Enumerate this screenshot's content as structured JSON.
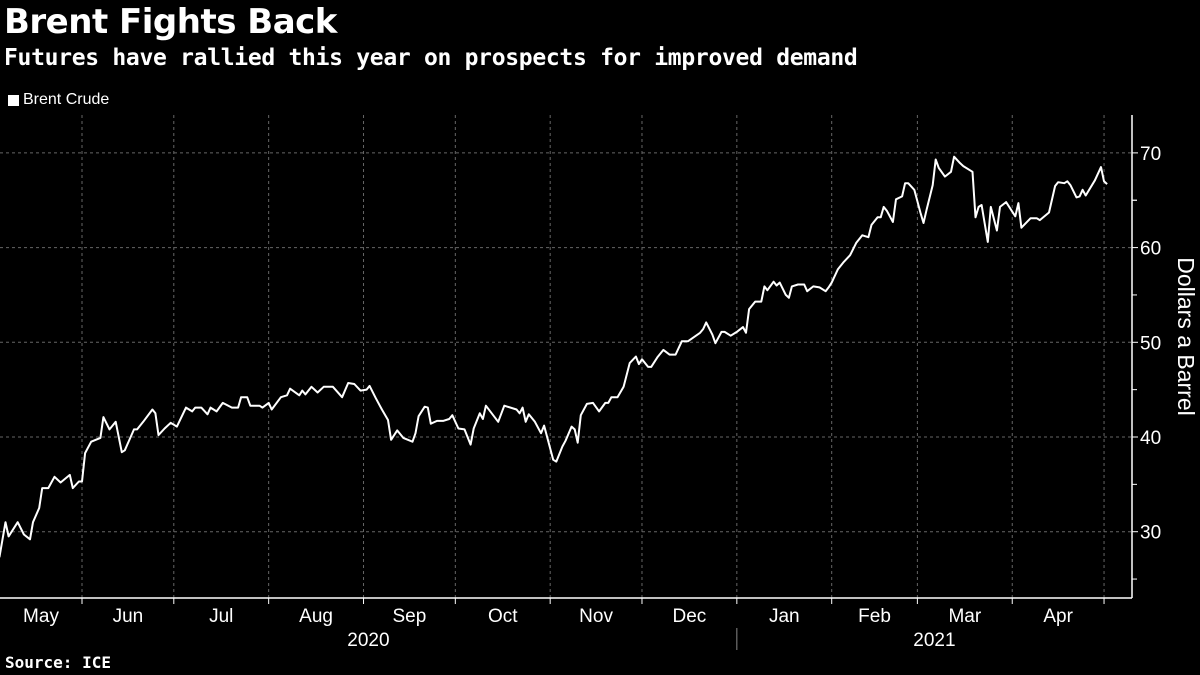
{
  "title": "Brent Fights Back",
  "subtitle": "Futures have rallied this year on prospects for improved demand",
  "source": "Source: ICE",
  "colors": {
    "background": "#000000",
    "line": "#ffffff",
    "grid": "#666666"
  },
  "chart_data": {
    "type": "line",
    "title": "Brent Fights Back",
    "subtitle": "Futures have rallied this year on prospects for improved demand",
    "ylabel": "Dollars a Barrel",
    "ylim": [
      23,
      74
    ],
    "yticks": [
      30,
      40,
      50,
      60,
      70
    ],
    "y_axis_side": "right",
    "grid": true,
    "legend_placement": "top-left",
    "xticks": [
      {
        "label": "May",
        "month": "2020-05"
      },
      {
        "label": "Jun",
        "month": "2020-06"
      },
      {
        "label": "Jul",
        "month": "2020-07"
      },
      {
        "label": "Aug",
        "month": "2020-08"
      },
      {
        "label": "Sep",
        "month": "2020-09"
      },
      {
        "label": "Oct",
        "month": "2020-10"
      },
      {
        "label": "Nov",
        "month": "2020-11"
      },
      {
        "label": "Dec",
        "month": "2020-12"
      },
      {
        "label": "Jan",
        "month": "2021-01"
      },
      {
        "label": "Feb",
        "month": "2021-02"
      },
      {
        "label": "Mar",
        "month": "2021-03"
      },
      {
        "label": "Apr",
        "month": "2021-04"
      }
    ],
    "years": [
      {
        "label": "2020"
      },
      {
        "label": "2021"
      }
    ],
    "series": [
      {
        "name": "Brent Crude",
        "color": "#ffffff",
        "points": [
          [
            "2020-05-05",
            27.3
          ],
          [
            "2020-05-07",
            31.0
          ],
          [
            "2020-05-08",
            29.5
          ],
          [
            "2020-05-11",
            31.0
          ],
          [
            "2020-05-13",
            29.7
          ],
          [
            "2020-05-15",
            29.2
          ],
          [
            "2020-05-16",
            31.0
          ],
          [
            "2020-05-18",
            32.5
          ],
          [
            "2020-05-19",
            34.6
          ],
          [
            "2020-05-21",
            34.6
          ],
          [
            "2020-05-23",
            35.8
          ],
          [
            "2020-05-25",
            35.2
          ],
          [
            "2020-05-28",
            36.0
          ],
          [
            "2020-05-29",
            34.6
          ],
          [
            "2020-05-31",
            35.3
          ],
          [
            "2020-06-01",
            35.3
          ],
          [
            "2020-06-02",
            38.3
          ],
          [
            "2020-06-04",
            39.5
          ],
          [
            "2020-06-07",
            39.9
          ],
          [
            "2020-06-08",
            42.1
          ],
          [
            "2020-06-10",
            40.8
          ],
          [
            "2020-06-12",
            41.6
          ],
          [
            "2020-06-14",
            38.4
          ],
          [
            "2020-06-15",
            38.6
          ],
          [
            "2020-06-18",
            40.8
          ],
          [
            "2020-06-19",
            40.8
          ],
          [
            "2020-06-21",
            41.6
          ],
          [
            "2020-06-24",
            42.9
          ],
          [
            "2020-06-25",
            42.5
          ],
          [
            "2020-06-26",
            40.2
          ],
          [
            "2020-06-28",
            40.9
          ],
          [
            "2020-06-30",
            41.5
          ],
          [
            "2020-07-02",
            41.1
          ],
          [
            "2020-07-05",
            43.1
          ],
          [
            "2020-07-07",
            42.7
          ],
          [
            "2020-07-08",
            43.1
          ],
          [
            "2020-07-10",
            43.1
          ],
          [
            "2020-07-12",
            42.4
          ],
          [
            "2020-07-13",
            43.1
          ],
          [
            "2020-07-15",
            42.7
          ],
          [
            "2020-07-17",
            43.6
          ],
          [
            "2020-07-20",
            43.1
          ],
          [
            "2020-07-22",
            43.1
          ],
          [
            "2020-07-23",
            44.2
          ],
          [
            "2020-07-25",
            44.2
          ],
          [
            "2020-07-26",
            43.3
          ],
          [
            "2020-07-29",
            43.3
          ],
          [
            "2020-07-30",
            43.1
          ],
          [
            "2020-08-01",
            43.6
          ],
          [
            "2020-08-02",
            42.9
          ],
          [
            "2020-08-05",
            44.2
          ],
          [
            "2020-08-07",
            44.4
          ],
          [
            "2020-08-08",
            45.1
          ],
          [
            "2020-08-11",
            44.4
          ],
          [
            "2020-08-12",
            44.9
          ],
          [
            "2020-08-13",
            44.5
          ],
          [
            "2020-08-15",
            45.3
          ],
          [
            "2020-08-17",
            44.7
          ],
          [
            "2020-08-19",
            45.3
          ],
          [
            "2020-08-22",
            45.3
          ],
          [
            "2020-08-25",
            44.2
          ],
          [
            "2020-08-27",
            45.7
          ],
          [
            "2020-08-29",
            45.6
          ],
          [
            "2020-08-31",
            44.9
          ],
          [
            "2020-09-02",
            45.0
          ],
          [
            "2020-09-03",
            45.4
          ],
          [
            "2020-09-05",
            44.1
          ],
          [
            "2020-09-07",
            42.9
          ],
          [
            "2020-09-09",
            41.8
          ],
          [
            "2020-09-10",
            39.7
          ],
          [
            "2020-09-12",
            40.7
          ],
          [
            "2020-09-14",
            39.9
          ],
          [
            "2020-09-17",
            39.5
          ],
          [
            "2020-09-18",
            40.4
          ],
          [
            "2020-09-19",
            42.2
          ],
          [
            "2020-09-21",
            43.2
          ],
          [
            "2020-09-22",
            43.1
          ],
          [
            "2020-09-23",
            41.4
          ],
          [
            "2020-09-25",
            41.7
          ],
          [
            "2020-09-27",
            41.7
          ],
          [
            "2020-09-29",
            41.9
          ],
          [
            "2020-09-30",
            42.3
          ],
          [
            "2020-10-02",
            40.9
          ],
          [
            "2020-10-04",
            40.8
          ],
          [
            "2020-10-06",
            39.2
          ],
          [
            "2020-10-07",
            40.9
          ],
          [
            "2020-10-09",
            42.5
          ],
          [
            "2020-10-10",
            41.9
          ],
          [
            "2020-10-11",
            43.3
          ],
          [
            "2020-10-15",
            41.6
          ],
          [
            "2020-10-17",
            43.3
          ],
          [
            "2020-10-21",
            42.9
          ],
          [
            "2020-10-22",
            42.5
          ],
          [
            "2020-10-23",
            43.1
          ],
          [
            "2020-10-24",
            41.6
          ],
          [
            "2020-10-25",
            42.4
          ],
          [
            "2020-10-27",
            41.6
          ],
          [
            "2020-10-29",
            40.4
          ],
          [
            "2020-10-30",
            41.2
          ],
          [
            "2020-11-02",
            37.6
          ],
          [
            "2020-11-03",
            37.4
          ],
          [
            "2020-11-05",
            39.0
          ],
          [
            "2020-11-06",
            39.6
          ],
          [
            "2020-11-08",
            41.1
          ],
          [
            "2020-11-09",
            40.8
          ],
          [
            "2020-11-10",
            39.4
          ],
          [
            "2020-11-11",
            42.3
          ],
          [
            "2020-11-13",
            43.5
          ],
          [
            "2020-11-15",
            43.6
          ],
          [
            "2020-11-17",
            42.7
          ],
          [
            "2020-11-19",
            43.6
          ],
          [
            "2020-11-20",
            43.6
          ],
          [
            "2020-11-21",
            44.2
          ],
          [
            "2020-11-23",
            44.2
          ],
          [
            "2020-11-25",
            45.3
          ],
          [
            "2020-11-27",
            47.8
          ],
          [
            "2020-11-29",
            48.5
          ],
          [
            "2020-11-30",
            47.7
          ],
          [
            "2020-12-01",
            48.2
          ],
          [
            "2020-12-03",
            47.4
          ],
          [
            "2020-12-04",
            47.4
          ],
          [
            "2020-12-06",
            48.4
          ],
          [
            "2020-12-08",
            49.2
          ],
          [
            "2020-12-10",
            48.7
          ],
          [
            "2020-12-12",
            48.7
          ],
          [
            "2020-12-14",
            50.1
          ],
          [
            "2020-12-16",
            50.1
          ],
          [
            "2020-12-20",
            51.0
          ],
          [
            "2020-12-21",
            51.4
          ],
          [
            "2020-12-22",
            52.1
          ],
          [
            "2020-12-24",
            50.8
          ],
          [
            "2020-12-25",
            49.9
          ],
          [
            "2020-12-27",
            51.1
          ],
          [
            "2020-12-28",
            51.1
          ],
          [
            "2020-12-30",
            50.7
          ],
          [
            "2021-01-01",
            51.1
          ],
          [
            "2021-01-03",
            51.6
          ],
          [
            "2021-01-04",
            51.0
          ],
          [
            "2021-01-05",
            53.5
          ],
          [
            "2021-01-07",
            54.3
          ],
          [
            "2021-01-09",
            54.3
          ],
          [
            "2021-01-10",
            55.9
          ],
          [
            "2021-01-11",
            55.5
          ],
          [
            "2021-01-13",
            56.4
          ],
          [
            "2021-01-14",
            56.0
          ],
          [
            "2021-01-15",
            56.3
          ],
          [
            "2021-01-17",
            55.0
          ],
          [
            "2021-01-18",
            54.7
          ],
          [
            "2021-01-19",
            55.9
          ],
          [
            "2021-01-21",
            56.1
          ],
          [
            "2021-01-23",
            56.1
          ],
          [
            "2021-01-24",
            55.4
          ],
          [
            "2021-01-26",
            55.9
          ],
          [
            "2021-01-28",
            55.8
          ],
          [
            "2021-01-30",
            55.4
          ],
          [
            "2021-01-31",
            55.8
          ],
          [
            "2021-02-01",
            56.3
          ],
          [
            "2021-02-03",
            57.7
          ],
          [
            "2021-02-05",
            58.5
          ],
          [
            "2021-02-07",
            59.2
          ],
          [
            "2021-02-09",
            60.5
          ],
          [
            "2021-02-11",
            61.3
          ],
          [
            "2021-02-13",
            61.1
          ],
          [
            "2021-02-14",
            62.4
          ],
          [
            "2021-02-16",
            63.2
          ],
          [
            "2021-02-17",
            63.2
          ],
          [
            "2021-02-18",
            64.3
          ],
          [
            "2021-02-19",
            63.9
          ],
          [
            "2021-02-21",
            62.7
          ],
          [
            "2021-02-22",
            65.1
          ],
          [
            "2021-02-24",
            65.4
          ],
          [
            "2021-02-25",
            66.8
          ],
          [
            "2021-02-26",
            66.8
          ],
          [
            "2021-02-28",
            66.1
          ],
          [
            "2021-03-02",
            63.7
          ],
          [
            "2021-03-03",
            62.6
          ],
          [
            "2021-03-04",
            64.0
          ],
          [
            "2021-03-06",
            66.6
          ],
          [
            "2021-03-07",
            69.3
          ],
          [
            "2021-03-08",
            68.4
          ],
          [
            "2021-03-10",
            67.5
          ],
          [
            "2021-03-12",
            68.0
          ],
          [
            "2021-03-13",
            69.6
          ],
          [
            "2021-03-15",
            68.9
          ],
          [
            "2021-03-16",
            68.6
          ],
          [
            "2021-03-19",
            68.0
          ],
          [
            "2021-03-20",
            63.2
          ],
          [
            "2021-03-21",
            64.3
          ],
          [
            "2021-03-22",
            64.5
          ],
          [
            "2021-03-24",
            60.6
          ],
          [
            "2021-03-25",
            64.3
          ],
          [
            "2021-03-27",
            61.8
          ],
          [
            "2021-03-28",
            64.3
          ],
          [
            "2021-03-30",
            64.8
          ],
          [
            "2021-04-01",
            63.8
          ],
          [
            "2021-04-02",
            63.3
          ],
          [
            "2021-04-03",
            64.7
          ],
          [
            "2021-04-04",
            62.1
          ],
          [
            "2021-04-07",
            63.1
          ],
          [
            "2021-04-09",
            63.1
          ],
          [
            "2021-04-10",
            62.9
          ],
          [
            "2021-04-13",
            63.7
          ],
          [
            "2021-04-15",
            66.5
          ],
          [
            "2021-04-16",
            66.9
          ],
          [
            "2021-04-18",
            66.8
          ],
          [
            "2021-04-19",
            67.0
          ],
          [
            "2021-04-20",
            66.6
          ],
          [
            "2021-04-22",
            65.3
          ],
          [
            "2021-04-23",
            65.4
          ],
          [
            "2021-04-24",
            66.1
          ],
          [
            "2021-04-25",
            65.5
          ],
          [
            "2021-04-28",
            67.1
          ],
          [
            "2021-04-30",
            68.5
          ],
          [
            "2021-05-01",
            67.0
          ],
          [
            "2021-05-02",
            66.7
          ]
        ]
      }
    ]
  }
}
